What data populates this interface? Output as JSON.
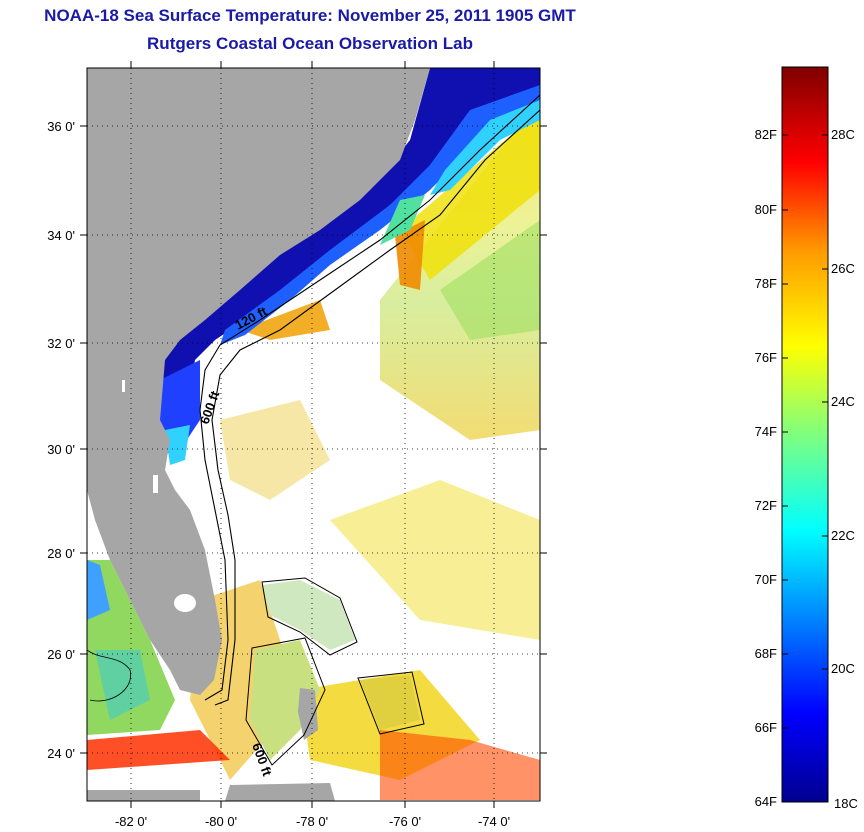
{
  "header": {
    "title": "NOAA-18 Sea Surface Temperature:  November 25, 2011 1905 GMT",
    "subtitle": "Rutgers Coastal Ocean Observation Lab"
  },
  "map": {
    "lat_labels": [
      "36 0'",
      "34 0'",
      "32 0'",
      "30 0'",
      "28 0'",
      "26 0'",
      "24 0'"
    ],
    "lon_labels": [
      "-82 0'",
      "-80 0'",
      "-78 0'",
      "-76 0'",
      "-74 0'"
    ],
    "lat_range": [
      23.0,
      37.1
    ],
    "lon_range": [
      -83.0,
      -73.0
    ],
    "contour_labels": [
      "120 ft",
      "600 ft",
      "600 ft"
    ],
    "land_color": "#a6a6a6",
    "gridlines": "dotted"
  },
  "colorbar": {
    "fahrenheit_labels": [
      "64F",
      "66F",
      "68F",
      "70F",
      "72F",
      "74F",
      "76F",
      "78F",
      "80F",
      "82F"
    ],
    "celsius_labels": [
      "18C",
      "20C",
      "22C",
      "24C",
      "26C",
      "28C"
    ],
    "range_f": [
      64,
      84.2
    ],
    "colormap": "jet"
  }
}
